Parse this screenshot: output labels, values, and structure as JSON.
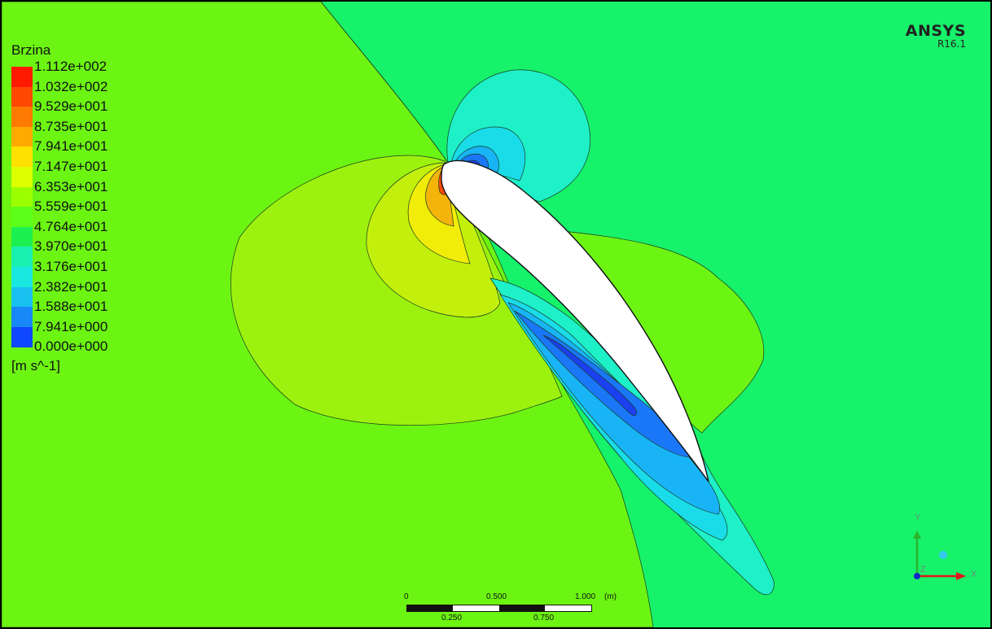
{
  "brand": {
    "name": "ANSYS",
    "version": "R16.1"
  },
  "legend": {
    "title": "Brzina",
    "unit": "[m s^-1]",
    "levels": [
      "1.112e+002",
      "1.032e+002",
      "9.529e+001",
      "8.735e+001",
      "7.941e+001",
      "7.147e+001",
      "6.353e+001",
      "5.559e+001",
      "4.764e+001",
      "3.970e+001",
      "3.176e+001",
      "2.382e+001",
      "1.588e+001",
      "7.941e+000",
      "0.000e+000"
    ],
    "colors": [
      "#ff1a00",
      "#ff4800",
      "#ff7a00",
      "#ffaa00",
      "#ffe000",
      "#dcff00",
      "#9cff00",
      "#5cff1a",
      "#1cf050",
      "#18f0b0",
      "#18e8e0",
      "#18c0f0",
      "#1888f8",
      "#1048ff",
      "#0018ff"
    ]
  },
  "scale_bar": {
    "top_labels": [
      "0",
      "0.500",
      "1.000"
    ],
    "bottom_labels": [
      "0.250",
      "0.750"
    ],
    "unit": "(m)"
  },
  "axes": {
    "y": "Y",
    "x": "X",
    "z": "Z"
  },
  "field_colors": {
    "far_left": "#6cf512",
    "far_right": "#16f26a",
    "stagnation_outer": "#9cf20e",
    "stagnation_mid": "#c2f00c",
    "stagnation_inner": "#f1ec08",
    "stagnation_core": "#f4b40a",
    "leading_edge": "#ff4a0a",
    "low_1": "#1ef0c8",
    "low_2": "#19dce8",
    "low_3": "#18b4f6",
    "low_4": "#1a78f8",
    "low_5": "#1a40f0",
    "airfoil": "#ffffff"
  }
}
